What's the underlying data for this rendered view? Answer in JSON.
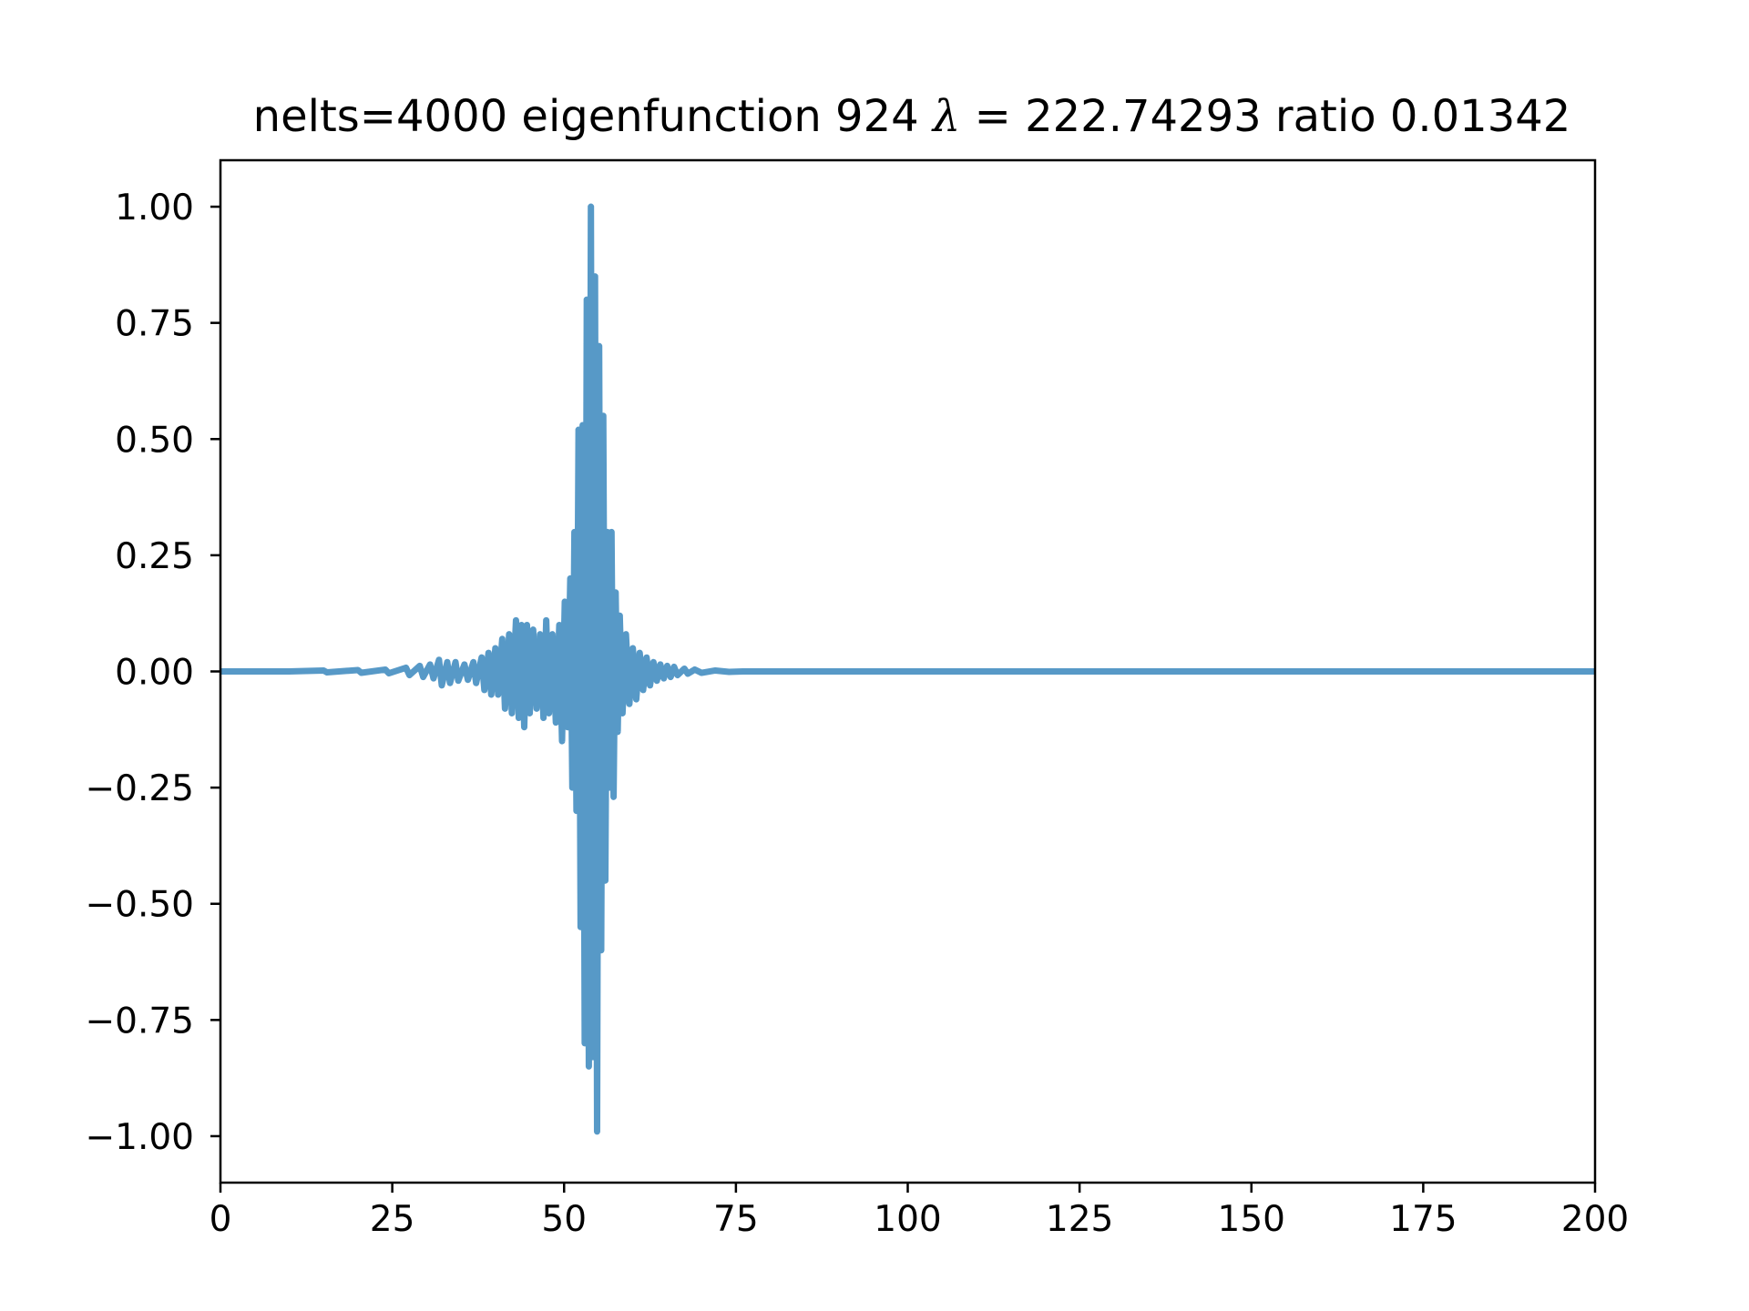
{
  "chart_data": {
    "type": "line",
    "title_parts": {
      "prefix": "nelts=4000  eigenfunction 924  ",
      "lambda_symbol": "λ",
      "equals": " = ",
      "suffix": "222.74293 ratio 0.01342"
    },
    "xlabel": "",
    "ylabel": "",
    "xlim": [
      0,
      200
    ],
    "ylim": [
      -1.1,
      1.1
    ],
    "x_ticks": [
      0,
      25,
      50,
      75,
      100,
      125,
      150,
      175,
      200
    ],
    "x_tick_labels": [
      "0",
      "25",
      "50",
      "75",
      "100",
      "125",
      "150",
      "175",
      "200"
    ],
    "y_ticks": [
      1.0,
      0.75,
      0.5,
      0.25,
      0.0,
      -0.25,
      -0.5,
      -0.75,
      -1.0
    ],
    "y_tick_labels": [
      "1.00",
      "0.75",
      "0.50",
      "0.25",
      "0.00",
      "−0.25",
      "−0.50",
      "−0.75",
      "−1.00"
    ],
    "grid": false,
    "legend": "none",
    "series": [
      {
        "color": "#5799c7",
        "points": [
          [
            0,
            0.0
          ],
          [
            10,
            0.0
          ],
          [
            15,
            0.002
          ],
          [
            15.5,
            -0.002
          ],
          [
            20,
            0.003
          ],
          [
            20.5,
            -0.003
          ],
          [
            24,
            0.004
          ],
          [
            24.5,
            -0.004
          ],
          [
            27,
            0.008
          ],
          [
            27.5,
            -0.008
          ],
          [
            29,
            0.012
          ],
          [
            29.5,
            -0.012
          ],
          [
            30.5,
            0.015
          ],
          [
            31,
            -0.015
          ],
          [
            31.8,
            0.025
          ],
          [
            32.2,
            -0.03
          ],
          [
            33,
            0.02
          ],
          [
            33.4,
            -0.025
          ],
          [
            34.2,
            0.02
          ],
          [
            34.6,
            -0.02
          ],
          [
            35.5,
            0.015
          ],
          [
            36,
            -0.018
          ],
          [
            36.8,
            0.02
          ],
          [
            37.2,
            -0.025
          ],
          [
            38,
            0.03
          ],
          [
            38.4,
            -0.04
          ],
          [
            39,
            0.04
          ],
          [
            39.4,
            -0.05
          ],
          [
            40,
            0.05
          ],
          [
            40.4,
            -0.05
          ],
          [
            41,
            0.07
          ],
          [
            41.4,
            -0.08
          ],
          [
            42,
            0.08
          ],
          [
            42.4,
            -0.09
          ],
          [
            43,
            0.11
          ],
          [
            43.4,
            -0.1
          ],
          [
            43.8,
            0.1
          ],
          [
            44.2,
            -0.12
          ],
          [
            44.6,
            0.1
          ],
          [
            45,
            -0.09
          ],
          [
            45.5,
            0.09
          ],
          [
            46,
            -0.08
          ],
          [
            46.5,
            0.08
          ],
          [
            47,
            -0.1
          ],
          [
            47.4,
            0.11
          ],
          [
            47.8,
            -0.09
          ],
          [
            48.3,
            0.08
          ],
          [
            48.8,
            -0.11
          ],
          [
            49.3,
            0.1
          ],
          [
            49.7,
            -0.15
          ],
          [
            50.1,
            0.15
          ],
          [
            50.5,
            -0.12
          ],
          [
            50.9,
            0.2
          ],
          [
            51.2,
            -0.25
          ],
          [
            51.5,
            0.3
          ],
          [
            51.8,
            -0.3
          ],
          [
            52.1,
            0.52
          ],
          [
            52.4,
            -0.55
          ],
          [
            52.7,
            0.53
          ],
          [
            53.0,
            -0.8
          ],
          [
            53.3,
            0.8
          ],
          [
            53.6,
            -0.85
          ],
          [
            53.9,
            1.0
          ],
          [
            54.2,
            -0.83
          ],
          [
            54.5,
            0.85
          ],
          [
            54.8,
            -0.99
          ],
          [
            55.1,
            0.7
          ],
          [
            55.4,
            -0.6
          ],
          [
            55.7,
            0.55
          ],
          [
            56.0,
            -0.45
          ],
          [
            56.3,
            0.3
          ],
          [
            56.6,
            -0.25
          ],
          [
            56.9,
            0.3
          ],
          [
            57.2,
            -0.27
          ],
          [
            57.5,
            0.17
          ],
          [
            57.8,
            -0.13
          ],
          [
            58.1,
            0.12
          ],
          [
            58.5,
            -0.09
          ],
          [
            59,
            0.08
          ],
          [
            59.5,
            -0.07
          ],
          [
            60,
            0.05
          ],
          [
            60.5,
            -0.06
          ],
          [
            61,
            0.04
          ],
          [
            61.5,
            -0.04
          ],
          [
            62,
            0.03
          ],
          [
            62.5,
            -0.03
          ],
          [
            63,
            0.02
          ],
          [
            63.5,
            -0.02
          ],
          [
            64,
            0.015
          ],
          [
            64.5,
            -0.015
          ],
          [
            65,
            0.012
          ],
          [
            65.5,
            -0.012
          ],
          [
            66,
            0.01
          ],
          [
            66.5,
            -0.008
          ],
          [
            67.5,
            0.006
          ],
          [
            68,
            -0.005
          ],
          [
            69,
            0.004
          ],
          [
            70,
            -0.003
          ],
          [
            72,
            0.002
          ],
          [
            74,
            -0.001
          ],
          [
            76,
            0.0
          ],
          [
            200,
            0.0
          ]
        ]
      }
    ]
  }
}
